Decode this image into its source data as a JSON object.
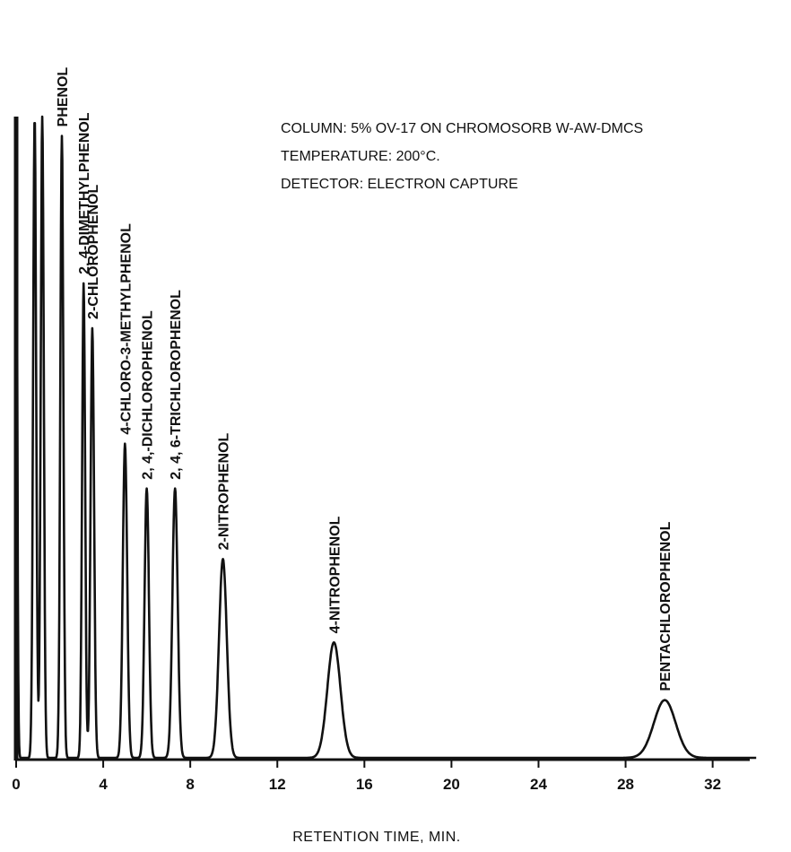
{
  "chart_data": {
    "type": "line",
    "title": "",
    "xlabel": "RETENTION TIME, MIN.",
    "ylabel": "",
    "xlim": [
      0,
      34
    ],
    "ylim": [
      0,
      100
    ],
    "xticks": [
      0,
      4,
      8,
      12,
      16,
      20,
      24,
      28,
      32
    ],
    "grid": false,
    "annotations": [
      "COLUMN: 5% OV-17 ON CHROMOSORB W-AW-DMCS",
      "TEMPERATURE:  200°C.",
      "DETECTOR:  ELECTRON CAPTURE"
    ],
    "solvent_peaks": [
      {
        "rt": 0.0,
        "height": 100,
        "width": 0.05
      },
      {
        "rt": 0.85,
        "height": 100,
        "width": 0.07
      },
      {
        "rt": 1.2,
        "height": 100,
        "width": 0.07
      }
    ],
    "peaks": [
      {
        "name": "PHENOL",
        "rt": 2.1,
        "height": 97,
        "width": 0.07
      },
      {
        "name": "2, 4-DIMETHYLPHENOL",
        "rt": 3.1,
        "height": 74,
        "width": 0.07
      },
      {
        "name": "2-CHLOROPHENOL",
        "rt": 3.5,
        "height": 67,
        "width": 0.08
      },
      {
        "name": "4-CHLORO-3-METHYLPHENOL",
        "rt": 5.0,
        "height": 49,
        "width": 0.1
      },
      {
        "name": "2, 4,-DICHLOROPHENOL",
        "rt": 6.0,
        "height": 42,
        "width": 0.1
      },
      {
        "name": "2, 4, 6-TRICHLOROPHENOL",
        "rt": 7.3,
        "height": 42,
        "width": 0.12
      },
      {
        "name": "2-NITROPHENOL",
        "rt": 9.5,
        "height": 31,
        "width": 0.18
      },
      {
        "name": "4-NITROPHENOL",
        "rt": 14.6,
        "height": 18,
        "width": 0.3
      },
      {
        "name": "PENTACHLOROPHENOL",
        "rt": 29.8,
        "height": 9,
        "width": 0.5
      }
    ]
  }
}
